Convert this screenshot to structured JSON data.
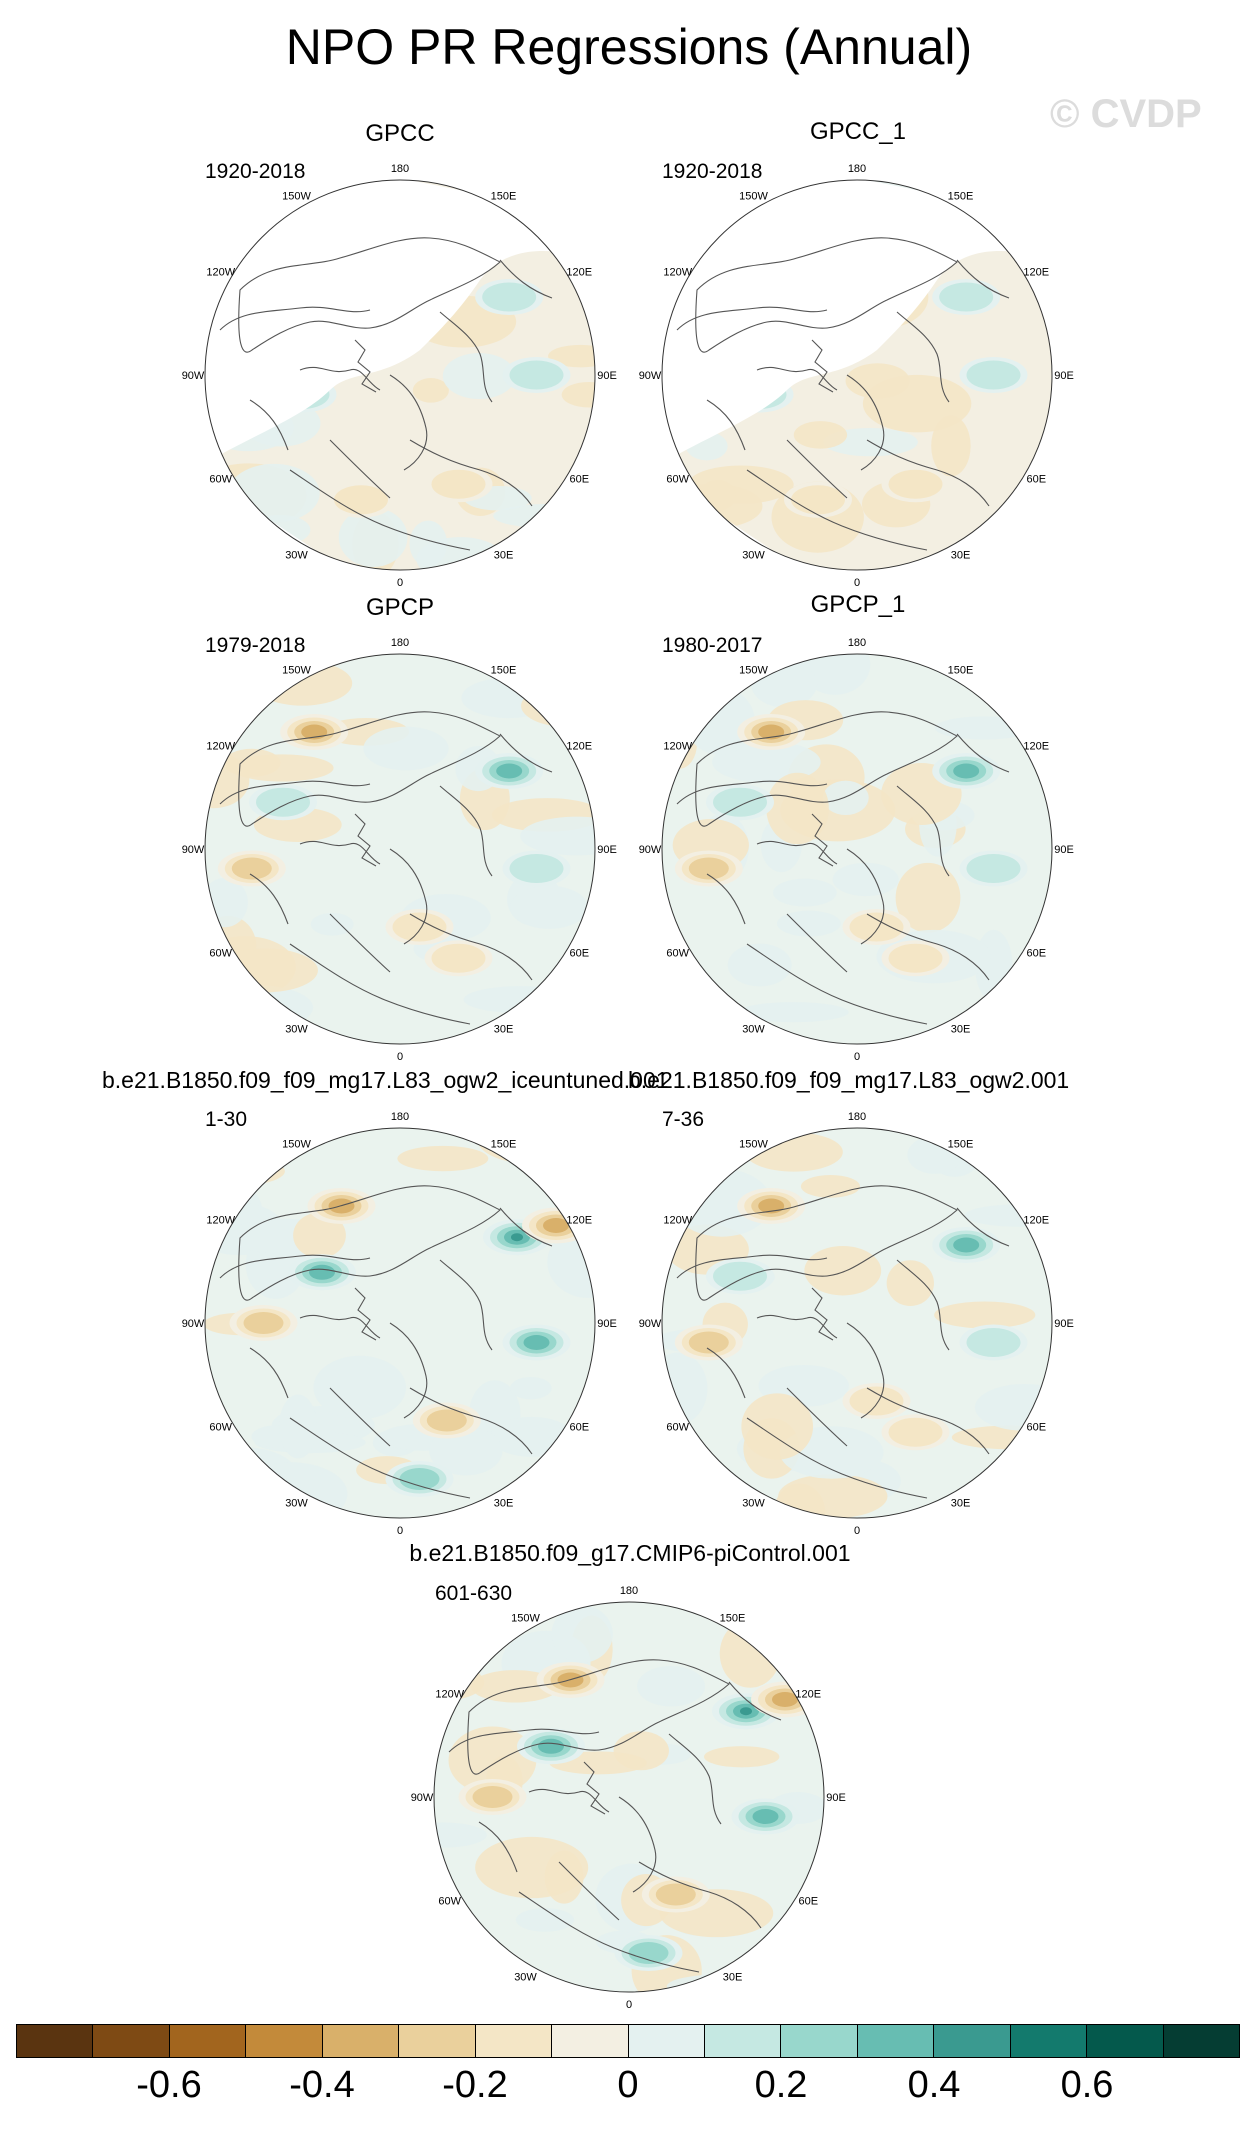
{
  "figure": {
    "title": "NPO PR Regressions (Annual)",
    "watermark": "© CVDP"
  },
  "longitude_labels": [
    "180",
    "150E",
    "120E",
    "90E",
    "60E",
    "30E",
    "0",
    "30W",
    "60W",
    "90W",
    "120W",
    "150W"
  ],
  "panels": [
    {
      "title": "GPCC",
      "period": "1920-2018",
      "dataset": "observations",
      "pattern": "weak"
    },
    {
      "title": "GPCC_1",
      "period": "1920-2018",
      "dataset": "observations",
      "pattern": "weak"
    },
    {
      "title": "GPCP",
      "period": "1979-2018",
      "dataset": "observations",
      "pattern": "moderate"
    },
    {
      "title": "GPCP_1",
      "period": "1980-2017",
      "dataset": "observations",
      "pattern": "moderate"
    },
    {
      "title": "b.e21.B1850.f09_f09_mg17.L83_ogw2_iceuntuned.001",
      "period": "1-30",
      "dataset": "model",
      "pattern": "strong"
    },
    {
      "title": "b.e21.B1850.f09_f09_mg17.L83_ogw2.001",
      "period": "7-36",
      "dataset": "model",
      "pattern": "moderate"
    },
    {
      "title": "b.e21.B1850.f09_g17.CMIP6-piControl.001",
      "period": "601-630",
      "dataset": "model",
      "pattern": "strong"
    }
  ],
  "colorbar": {
    "colors": [
      "#5a3410",
      "#7e4a14",
      "#a2651e",
      "#c38a3a",
      "#d9b06a",
      "#ead09c",
      "#f4e6c6",
      "#f3efe2",
      "#e4f1f0",
      "#c5e8e2",
      "#98d7cc",
      "#67bdb2",
      "#3a9a90",
      "#137a6d",
      "#04594c",
      "#053d33"
    ],
    "tick_labels": [
      "-0.6",
      "-0.4",
      "-0.2",
      "0",
      "0.2",
      "0.4",
      "0.6"
    ],
    "tick_values": [
      -0.6,
      -0.4,
      -0.2,
      0,
      0.2,
      0.4,
      0.6
    ],
    "range": [
      -0.8,
      0.8
    ]
  }
}
